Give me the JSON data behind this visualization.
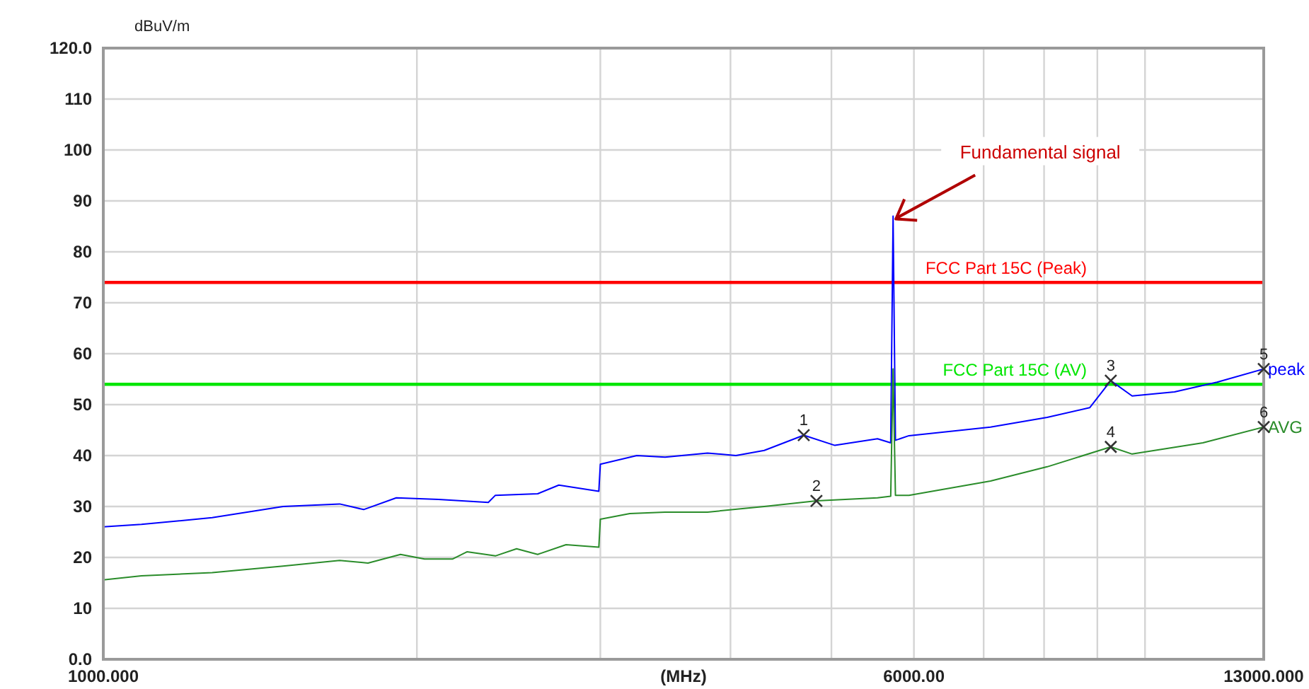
{
  "chart_data": {
    "type": "line",
    "ylabel": "dBuV/m",
    "xlabel": "(MHz)",
    "log": "x",
    "grid": true,
    "xlim": [
      1000,
      13000
    ],
    "ylim": [
      0,
      120
    ],
    "xticks": [
      {
        "value": 1000,
        "label": "1000.000"
      },
      {
        "value": 2000,
        "label": null
      },
      {
        "value": 3000,
        "label": null
      },
      {
        "value": 4000,
        "label": null
      },
      {
        "value": 5000,
        "label": null
      },
      {
        "value": 6000,
        "label": "6000.00"
      },
      {
        "value": 7000,
        "label": null
      },
      {
        "value": 8000,
        "label": null
      },
      {
        "value": 9000,
        "label": null
      },
      {
        "value": 10000,
        "label": null
      },
      {
        "value": 13000,
        "label": "13000.000"
      }
    ],
    "yticks": [
      {
        "value": 0,
        "label": "0.0"
      },
      10,
      20,
      30,
      40,
      50,
      60,
      70,
      80,
      90,
      100,
      110,
      {
        "value": 120,
        "label": "120.0"
      }
    ],
    "ref_lines": [
      {
        "axis": "y",
        "value": 74,
        "label": "FCC Part 15C (Peak)",
        "color": "#ff0000"
      },
      {
        "axis": "y",
        "value": 54,
        "label": "FCC Part 15C (AV)",
        "color": "#00e600"
      }
    ],
    "series": [
      {
        "name": "peak",
        "color": "#0000ff",
        "x": [
          1000,
          1088,
          1272,
          1488,
          1686,
          1778,
          1911,
          2098,
          2342,
          2379,
          2612,
          2737,
          2990,
          3000,
          3252,
          3462,
          3802,
          4048,
          4310,
          4703,
          5038,
          5536,
          5700,
          5730,
          5760,
          5935,
          7107,
          8056,
          8849,
          9271,
          9719,
          10674,
          11728,
          13000
        ],
        "values": [
          26,
          26.5,
          27.8,
          30,
          30.5,
          29.4,
          31.7,
          31.4,
          30.8,
          32.2,
          32.5,
          34.2,
          33,
          38.3,
          40,
          39.7,
          40.5,
          40,
          41,
          44,
          42,
          43.3,
          42.5,
          87,
          43,
          43.9,
          45.6,
          47.5,
          49.4,
          54.7,
          51.7,
          52.5,
          54.4,
          57
        ]
      },
      {
        "name": "AVG",
        "color": "#2a8c2a",
        "x": [
          1000,
          1088,
          1272,
          1488,
          1686,
          1795,
          1929,
          2034,
          2165,
          2234,
          2379,
          2493,
          2612,
          2781,
          2990,
          3000,
          3202,
          3462,
          3802,
          4310,
          4837,
          5536,
          5700,
          5730,
          5760,
          5935,
          7107,
          8056,
          9271,
          9719,
          11364,
          13000
        ],
        "values": [
          15.6,
          16.4,
          17,
          18.3,
          19.4,
          18.9,
          20.6,
          19.7,
          19.7,
          21.1,
          20.3,
          21.7,
          20.6,
          22.5,
          22,
          27.5,
          28.6,
          28.9,
          28.9,
          30,
          31.1,
          31.7,
          32,
          57,
          32.2,
          32.2,
          35,
          37.8,
          41.7,
          40.3,
          42.5,
          45.6
        ]
      }
    ],
    "annotations": [
      {
        "text": "Fundamental signal",
        "x": 5730,
        "y": 87
      },
      {
        "text": "1",
        "x": 4703,
        "y": 44
      },
      {
        "text": "2",
        "x": 4837,
        "y": 31.1
      },
      {
        "text": "3",
        "x": 9271,
        "y": 54.7
      },
      {
        "text": "4",
        "x": 9271,
        "y": 41.7
      },
      {
        "text": "5",
        "x": 13000,
        "y": 57
      },
      {
        "text": "6",
        "x": 13000,
        "y": 45.6
      }
    ]
  }
}
